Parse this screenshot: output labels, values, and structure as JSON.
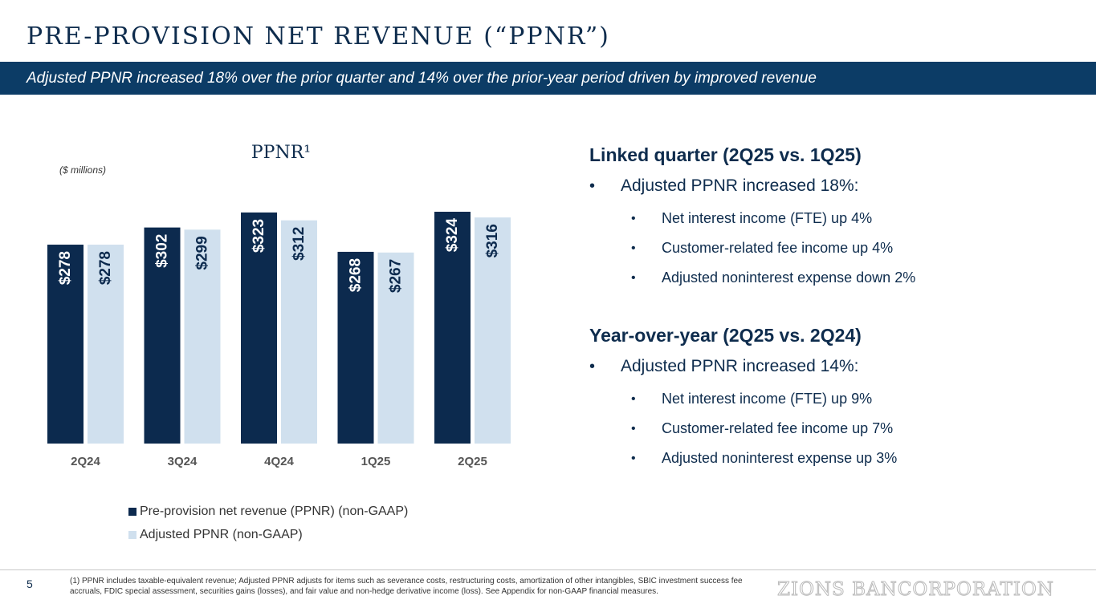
{
  "title": "PRE-PROVISION NET REVENUE (“PPNR”)",
  "banner": "Adjusted PPNR increased 18% over the prior quarter and 14% over the prior-year period driven by improved revenue",
  "chart_data": {
    "type": "bar",
    "title": "PPNR¹",
    "units_note": "($ millions)",
    "categories": [
      "2Q24",
      "3Q24",
      "4Q24",
      "1Q25",
      "2Q25"
    ],
    "series": [
      {
        "name": "Pre-provision net revenue (PPNR) (non-GAAP)",
        "values": [
          278,
          302,
          323,
          268,
          324
        ],
        "labels": [
          "$278",
          "$302",
          "$323",
          "$268",
          "$324"
        ],
        "color": "#0c2a4e"
      },
      {
        "name": "Adjusted PPNR (non-GAAP)",
        "values": [
          278,
          299,
          312,
          267,
          316
        ],
        "labels": [
          "$278",
          "$299",
          "$312",
          "$267",
          "$316"
        ],
        "color": "#d0e0ee"
      }
    ],
    "ylim": [
      0,
      324
    ],
    "grid": false,
    "legend_position": "bottom"
  },
  "linked_quarter": {
    "heading": "Linked quarter (2Q25 vs. 1Q25)",
    "main": "Adjusted PPNR increased 18%:",
    "items": [
      "Net interest income (FTE) up 4%",
      "Customer-related fee income up 4%",
      "Adjusted noninterest expense down 2%"
    ]
  },
  "year_over_year": {
    "heading": "Year-over-year (2Q25 vs. 2Q24)",
    "main": "Adjusted PPNR increased 14%:",
    "items": [
      "Net interest income (FTE) up 9%",
      "Customer-related fee income up 7%",
      "Adjusted noninterest expense up 3%"
    ]
  },
  "footer": {
    "page": "5",
    "footnote": "(1) PPNR includes taxable-equivalent revenue; Adjusted PPNR adjusts for items such as severance costs, restructuring costs, amortization of other intangibles, SBIC investment success fee accruals,  FDIC special assessment, securities gains (losses), and fair value and non-hedge derivative income (loss). See Appendix for non-GAAP financial measures.",
    "logo": "ZIONS BANCORPORATION"
  }
}
